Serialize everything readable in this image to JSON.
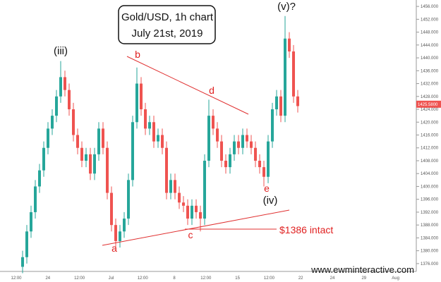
{
  "chart_data": {
    "type": "candlestick",
    "title": "Gold/USD, 1h chart",
    "subtitle": "July 21st, 2019",
    "x_labels": [
      "12:00",
      "24",
      "12:00",
      "Jul",
      "12:00",
      "8",
      "12:00",
      "15",
      "12:00",
      "22",
      "24",
      "29",
      "Aug"
    ],
    "open": [
      1375,
      1378,
      1386,
      1392,
      1400,
      1405,
      1412,
      1418,
      1422,
      1428,
      1434,
      1430,
      1424,
      1416,
      1412,
      1408,
      1410,
      1404,
      1410,
      1418,
      1412,
      1398,
      1388,
      1383,
      1386,
      1390,
      1402,
      1420,
      1432,
      1424,
      1418,
      1420,
      1414,
      1416,
      1412,
      1398,
      1402,
      1398,
      1395,
      1394,
      1390,
      1394,
      1392,
      1390,
      1408,
      1422,
      1418,
      1414,
      1408,
      1406,
      1410,
      1414,
      1412,
      1416,
      1414,
      1412,
      1408,
      1406,
      1403,
      1414,
      1424,
      1428,
      1422,
      1446,
      1442,
      1428
    ],
    "high": [
      1380,
      1388,
      1394,
      1402,
      1407,
      1414,
      1420,
      1424,
      1430,
      1439,
      1436,
      1432,
      1426,
      1418,
      1414,
      1412,
      1412,
      1412,
      1420,
      1420,
      1414,
      1400,
      1390,
      1388,
      1392,
      1404,
      1422,
      1437,
      1434,
      1426,
      1422,
      1422,
      1418,
      1418,
      1414,
      1404,
      1404,
      1400,
      1397,
      1396,
      1396,
      1396,
      1394,
      1410,
      1427,
      1424,
      1420,
      1416,
      1410,
      1412,
      1416,
      1416,
      1418,
      1418,
      1416,
      1414,
      1410,
      1408,
      1416,
      1426,
      1430,
      1430,
      1453,
      1448,
      1444,
      1430
    ],
    "low": [
      1373,
      1376,
      1384,
      1390,
      1398,
      1403,
      1410,
      1416,
      1420,
      1426,
      1428,
      1422,
      1414,
      1410,
      1406,
      1406,
      1402,
      1402,
      1408,
      1410,
      1396,
      1386,
      1381,
      1381,
      1384,
      1388,
      1400,
      1418,
      1422,
      1416,
      1416,
      1412,
      1412,
      1410,
      1396,
      1396,
      1396,
      1393,
      1392,
      1388,
      1388,
      1390,
      1386,
      1388,
      1406,
      1416,
      1412,
      1406,
      1404,
      1404,
      1408,
      1410,
      1410,
      1412,
      1410,
      1406,
      1404,
      1400,
      1401,
      1412,
      1422,
      1420,
      1420,
      1440,
      1426,
      1423
    ],
    "close": [
      1378,
      1386,
      1392,
      1400,
      1405,
      1412,
      1418,
      1422,
      1428,
      1434,
      1430,
      1424,
      1416,
      1412,
      1408,
      1410,
      1404,
      1410,
      1418,
      1412,
      1398,
      1388,
      1383,
      1386,
      1390,
      1402,
      1420,
      1432,
      1424,
      1418,
      1420,
      1414,
      1416,
      1412,
      1398,
      1402,
      1398,
      1395,
      1394,
      1390,
      1394,
      1392,
      1390,
      1408,
      1422,
      1418,
      1414,
      1408,
      1406,
      1410,
      1414,
      1412,
      1416,
      1414,
      1412,
      1408,
      1406,
      1403,
      1414,
      1424,
      1428,
      1422,
      1446,
      1442,
      1428,
      1425
    ],
    "up_color": "#26a69a",
    "down_color": "#ef5350",
    "ylim": [
      1374,
      1458
    ],
    "yticks": [
      {
        "value": 1376,
        "label": "1376.000"
      },
      {
        "value": 1380,
        "label": "1380.000"
      },
      {
        "value": 1384,
        "label": "1384.000"
      },
      {
        "value": 1388,
        "label": "1388.000"
      },
      {
        "value": 1392,
        "label": "1392.000"
      },
      {
        "value": 1396,
        "label": "1396.000"
      },
      {
        "value": 1400,
        "label": "1400.000"
      },
      {
        "value": 1404,
        "label": "1404.000"
      },
      {
        "value": 1408,
        "label": "1408.000"
      },
      {
        "value": 1412,
        "label": "1412.000"
      },
      {
        "value": 1416,
        "label": "1416.000"
      },
      {
        "value": 1420,
        "label": "1420.000"
      },
      {
        "value": 1424,
        "label": "1424.000"
      },
      {
        "value": 1428,
        "label": "1428.000"
      },
      {
        "value": 1432,
        "label": "1432.000"
      },
      {
        "value": 1436,
        "label": "1436.000"
      },
      {
        "value": 1440,
        "label": "1440.000"
      },
      {
        "value": 1444,
        "label": "1444.000"
      },
      {
        "value": 1448,
        "label": "1448.000"
      },
      {
        "value": 1452,
        "label": "1452.000"
      },
      {
        "value": 1456,
        "label": "1456.000"
      }
    ],
    "last_price": {
      "value": 1425.58,
      "label": "1425.5800"
    },
    "annotations": [
      "(iii)",
      "b",
      "d",
      "(v)?",
      "a",
      "c",
      "e",
      "(iv)",
      "$1386 intact"
    ],
    "watermark": "www.ewminteractive.com"
  }
}
